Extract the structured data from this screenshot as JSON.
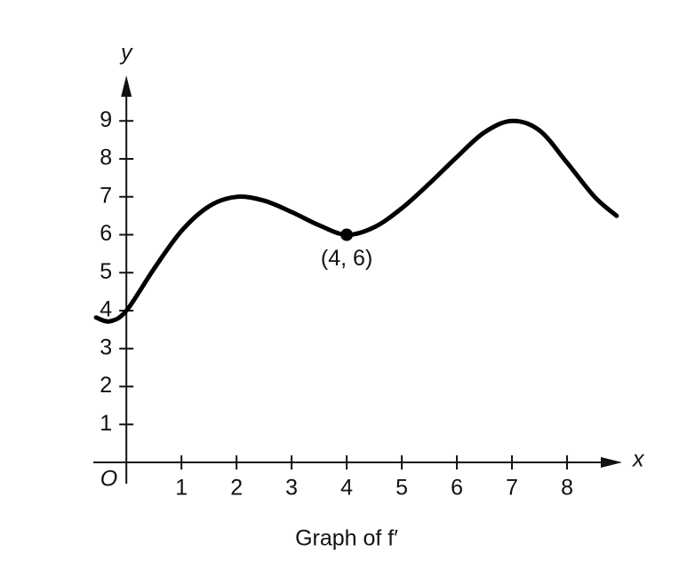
{
  "chart_data": {
    "type": "line",
    "title": "Graph of f′",
    "x_label": "x",
    "y_label": "y",
    "origin_label": "O",
    "x": [
      -0.55,
      -0.3,
      0,
      0.5,
      1,
      1.5,
      2,
      2.5,
      3,
      3.5,
      4,
      4.5,
      5,
      5.5,
      6,
      6.5,
      7,
      7.5,
      8,
      8.5,
      8.9
    ],
    "values": [
      3.82,
      3.72,
      4.0,
      5.1,
      6.1,
      6.75,
      7.0,
      6.9,
      6.6,
      6.25,
      6.0,
      6.2,
      6.7,
      7.35,
      8.05,
      8.7,
      9.0,
      8.75,
      7.9,
      7.0,
      6.5
    ],
    "color": "#000000",
    "points": [
      {
        "x": 4,
        "y": 6,
        "label": "(4, 6)"
      }
    ],
    "xlim": [
      -0.6,
      9.0
    ],
    "ylim": [
      -0.56,
      10.2
    ],
    "xticks": [
      1,
      2,
      3,
      4,
      5,
      6,
      7,
      8
    ],
    "yticks": [
      1,
      2,
      3,
      4,
      5,
      6,
      7,
      8,
      9
    ]
  }
}
